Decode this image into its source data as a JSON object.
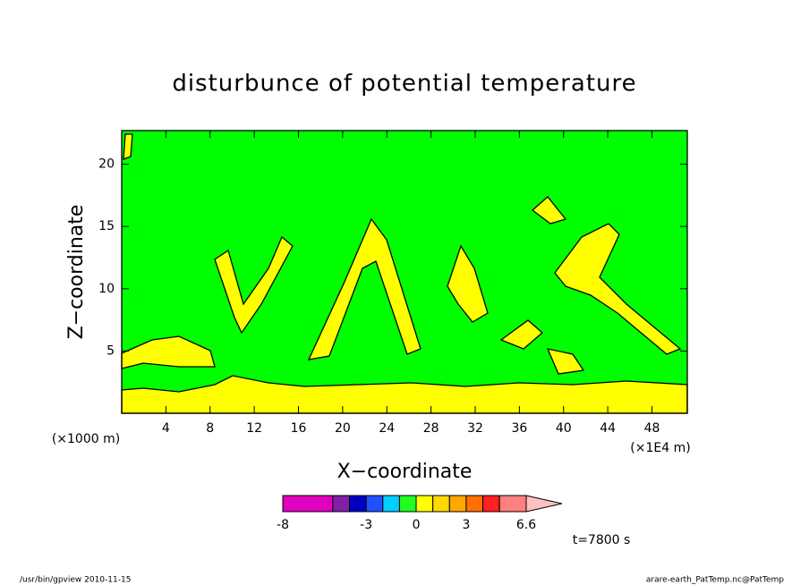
{
  "chart_data": {
    "type": "contour",
    "title": "disturbunce of potential temperature",
    "x_label": "X−coordinate",
    "y_label": "Z−coordinate",
    "x_unit_label": "(×1E4 m)",
    "y_unit_label": "(×1000 m)",
    "xlim": [
      0,
      51.2
    ],
    "ylim": [
      0,
      22.7
    ],
    "xticks": [
      4,
      8,
      12,
      16,
      20,
      24,
      28,
      32,
      36,
      40,
      44,
      48
    ],
    "yticks": [
      5,
      10,
      15,
      20
    ],
    "background_color": "#00ff00",
    "colorbar": {
      "lim": [
        -8,
        6.6
      ],
      "levels": [
        -8,
        -5,
        -4,
        -3,
        -2,
        -1,
        0,
        1,
        2,
        3,
        4,
        5,
        6.6
      ],
      "colors": [
        "#e000c0",
        "#8020a8",
        "#0000c0",
        "#2050ff",
        "#00d0ff",
        "#20ff20",
        "#ffff00",
        "#ffd800",
        "#ffa800",
        "#ff7000",
        "#ff2020",
        "#ff8080"
      ],
      "extend_color": "#ffc0c0",
      "ticks": [
        -8,
        -3,
        0,
        3,
        6.6
      ]
    },
    "time_label": "t=7800 s",
    "footer_left": "/usr/bin/gpview  2010-11-15",
    "footer_right": "arare-earth_PatTemp.nc@PatTemp"
  }
}
